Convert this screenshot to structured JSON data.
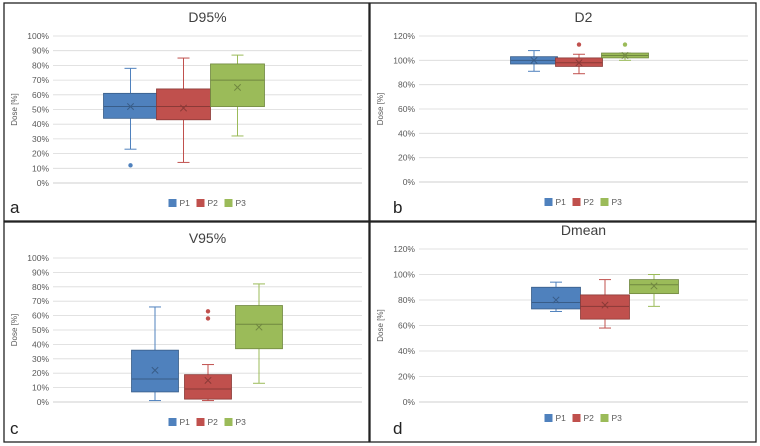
{
  "chart_data": [
    {
      "type": "boxplot",
      "panel_label": "a",
      "title": "D95%",
      "ylabel": "Dose [%]",
      "ylim": [
        0,
        100
      ],
      "yticks": [
        "0%",
        "10%",
        "20%",
        "30%",
        "40%",
        "50%",
        "60%",
        "70%",
        "80%",
        "90%",
        "100%"
      ],
      "legend": [
        "P1",
        "P2",
        "P3"
      ],
      "series": [
        {
          "name": "P1",
          "color": "#4f81bd",
          "min": 23,
          "q1": 44,
          "median": 52,
          "q3": 61,
          "max": 78,
          "mean": 52,
          "outliers": [
            12
          ]
        },
        {
          "name": "P2",
          "color": "#c0504d",
          "min": 14,
          "q1": 43,
          "median": 52,
          "q3": 64,
          "max": 85,
          "mean": 51,
          "outliers": []
        },
        {
          "name": "P3",
          "color": "#9bbb59",
          "min": 32,
          "q1": 52,
          "median": 70,
          "q3": 81,
          "max": 87,
          "mean": 65,
          "outliers": []
        }
      ]
    },
    {
      "type": "boxplot",
      "panel_label": "b",
      "title": "D2",
      "ylabel": "Dose [%]",
      "ylim": [
        0,
        120
      ],
      "yticks": [
        "0%",
        "20%",
        "40%",
        "60%",
        "80%",
        "100%",
        "120%"
      ],
      "legend": [
        "P1",
        "P2",
        "P3"
      ],
      "series": [
        {
          "name": "P1",
          "color": "#4f81bd",
          "min": 91,
          "q1": 97,
          "median": 100,
          "q3": 103,
          "max": 108,
          "mean": 100,
          "outliers": []
        },
        {
          "name": "P2",
          "color": "#c0504d",
          "min": 89,
          "q1": 95,
          "median": 98,
          "q3": 102,
          "max": 105,
          "mean": 98,
          "outliers": [
            113
          ]
        },
        {
          "name": "P3",
          "color": "#9bbb59",
          "min": 100,
          "q1": 102,
          "median": 104,
          "q3": 106,
          "max": 106,
          "mean": 104,
          "outliers": [
            113
          ]
        }
      ]
    },
    {
      "type": "boxplot",
      "panel_label": "c",
      "title": "V95%",
      "ylabel": "Dose [%]",
      "ylim": [
        0,
        100
      ],
      "yticks": [
        "0%",
        "10%",
        "20%",
        "30%",
        "40%",
        "50%",
        "60%",
        "70%",
        "80%",
        "90%",
        "100%"
      ],
      "legend": [
        "P1",
        "P2",
        "P3"
      ],
      "series": [
        {
          "name": "P1",
          "color": "#4f81bd",
          "min": 1,
          "q1": 7,
          "median": 16,
          "q3": 36,
          "max": 66,
          "mean": 22,
          "outliers": []
        },
        {
          "name": "P2",
          "color": "#c0504d",
          "min": 1,
          "q1": 2,
          "median": 9,
          "q3": 19,
          "max": 26,
          "mean": 15,
          "outliers": [
            58,
            63
          ]
        },
        {
          "name": "P3",
          "color": "#9bbb59",
          "min": 13,
          "q1": 37,
          "median": 54,
          "q3": 67,
          "max": 82,
          "mean": 52,
          "outliers": []
        }
      ]
    },
    {
      "type": "boxplot",
      "panel_label": "d",
      "title": "Dmean",
      "ylabel": "Dose [%]",
      "ylim": [
        0,
        120
      ],
      "yticks": [
        "0%",
        "20%",
        "40%",
        "60%",
        "80%",
        "100%",
        "120%"
      ],
      "legend": [
        "P1",
        "P2",
        "P3"
      ],
      "series": [
        {
          "name": "P1",
          "color": "#4f81bd",
          "min": 71,
          "q1": 73,
          "median": 78,
          "q3": 90,
          "max": 94,
          "mean": 80,
          "outliers": []
        },
        {
          "name": "P2",
          "color": "#c0504d",
          "min": 58,
          "q1": 65,
          "median": 75,
          "q3": 84,
          "max": 96,
          "mean": 76,
          "outliers": []
        },
        {
          "name": "P3",
          "color": "#9bbb59",
          "min": 75,
          "q1": 85,
          "median": 92,
          "q3": 96,
          "max": 100,
          "mean": 91,
          "outliers": []
        }
      ]
    }
  ]
}
